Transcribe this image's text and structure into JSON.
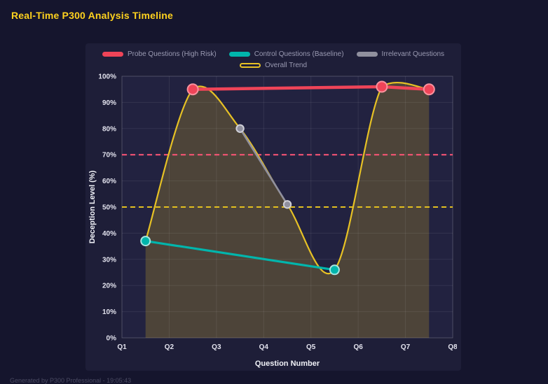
{
  "page": {
    "title": "Real-Time P300 Analysis Timeline",
    "footer": "Generated by P300 Professional - 19:05:43"
  },
  "chart_data": {
    "type": "line",
    "title": "",
    "xlabel": "Question Number",
    "ylabel": "Deception Level (%)",
    "xlim": [
      1,
      8
    ],
    "ylim": [
      0,
      100
    ],
    "grid": true,
    "legend_position": "top",
    "x_ticks": [
      {
        "value": 1,
        "label": "Q1"
      },
      {
        "value": 2,
        "label": "Q2"
      },
      {
        "value": 3,
        "label": "Q3"
      },
      {
        "value": 4,
        "label": "Q4"
      },
      {
        "value": 5,
        "label": "Q5"
      },
      {
        "value": 6,
        "label": "Q6"
      },
      {
        "value": 7,
        "label": "Q7"
      },
      {
        "value": 8,
        "label": "Q8"
      }
    ],
    "y_ticks": [
      {
        "value": 0,
        "label": "0%"
      },
      {
        "value": 10,
        "label": "10%"
      },
      {
        "value": 20,
        "label": "20%"
      },
      {
        "value": 30,
        "label": "30%"
      },
      {
        "value": 40,
        "label": "40%"
      },
      {
        "value": 50,
        "label": "50%"
      },
      {
        "value": 60,
        "label": "60%"
      },
      {
        "value": 70,
        "label": "70%"
      },
      {
        "value": 80,
        "label": "80%"
      },
      {
        "value": 90,
        "label": "90%"
      },
      {
        "value": 100,
        "label": "100%"
      }
    ],
    "series": [
      {
        "name": "Probe Questions (High Risk)",
        "color": "#ef4458",
        "marker_ring": "#f8929e",
        "markers": true,
        "smooth": false,
        "points": [
          [
            2.5,
            95
          ],
          [
            6.5,
            96
          ],
          [
            7.5,
            95
          ]
        ]
      },
      {
        "name": "Control Questions (Baseline)",
        "color": "#00b5ac",
        "marker_ring": "#a8e6e1",
        "markers": true,
        "smooth": false,
        "points": [
          [
            1.5,
            37
          ],
          [
            5.5,
            26
          ]
        ]
      },
      {
        "name": "Irrelevant Questions",
        "color": "#90909e",
        "marker_ring": "#d0d0d8",
        "markers": true,
        "smooth": false,
        "points": [
          [
            3.5,
            80
          ],
          [
            4.5,
            51
          ]
        ]
      },
      {
        "name": "Overall Trend",
        "color": "#e6c125",
        "swatch": "outline",
        "markers": false,
        "smooth": true,
        "area_fill": true,
        "points": [
          [
            1.5,
            37
          ],
          [
            2.5,
            95
          ],
          [
            3.5,
            80
          ],
          [
            4.5,
            51
          ],
          [
            5.5,
            26
          ],
          [
            6.5,
            96
          ],
          [
            7.5,
            95
          ]
        ]
      }
    ],
    "thresholds": [
      {
        "y": 70,
        "color": "#ff5577",
        "style": "dashed"
      },
      {
        "y": 50,
        "color": "#e3c020",
        "style": "dashed"
      }
    ],
    "colors": {
      "plot_bg": "#222240",
      "grid": "rgba(255,255,255,0.08)",
      "plot_border": "rgba(255,255,255,0.14)",
      "area_fill": "rgba(232,193,32,0.22)"
    }
  }
}
